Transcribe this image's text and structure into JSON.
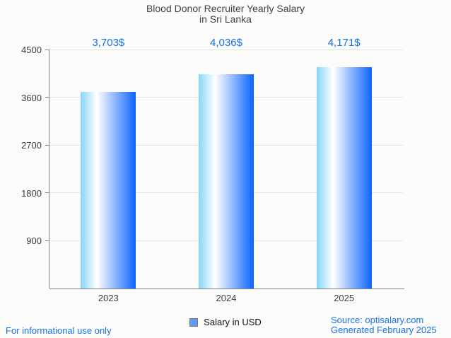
{
  "header": {
    "title_line1": "Blood Donor Recruiter Yearly Salary",
    "title_line2": "in Sri Lanka"
  },
  "legend": {
    "label": "Salary in USD"
  },
  "footer": {
    "disclaimer": "For informational use only",
    "source": "Source: optisalary.com",
    "generated": "Generated February 2025"
  },
  "chart_data": {
    "type": "bar",
    "title": "Blood Donor Recruiter Yearly Salary in Sri Lanka",
    "categories": [
      "2023",
      "2024",
      "2025"
    ],
    "values": [
      3703,
      4036,
      4171
    ],
    "value_labels": [
      "3,703$",
      "4,036$",
      "4,171$"
    ],
    "series": [
      {
        "name": "Salary in USD",
        "values": [
          3703,
          4036,
          4171
        ]
      }
    ],
    "xlabel": "",
    "ylabel": "",
    "ylim": [
      0,
      4500
    ],
    "yticks": [
      900,
      1800,
      2700,
      3600,
      4500
    ],
    "grid": true,
    "legend_position": "bottom",
    "colors": {
      "bar_gradient_left": "#87d6f9",
      "bar_gradient_mid": "#ffffff",
      "bar_gradient_right": "#0b64fe",
      "value_label": "#1a6fe5",
      "footer_text": "#1a73e8",
      "axis_text": "#3d3d3d",
      "title_text": "#424242",
      "gridline": "#e4e4e2",
      "axis_line": "#858585",
      "legend_swatch": "#5b9cf5",
      "background": "#fbfbf9"
    }
  }
}
